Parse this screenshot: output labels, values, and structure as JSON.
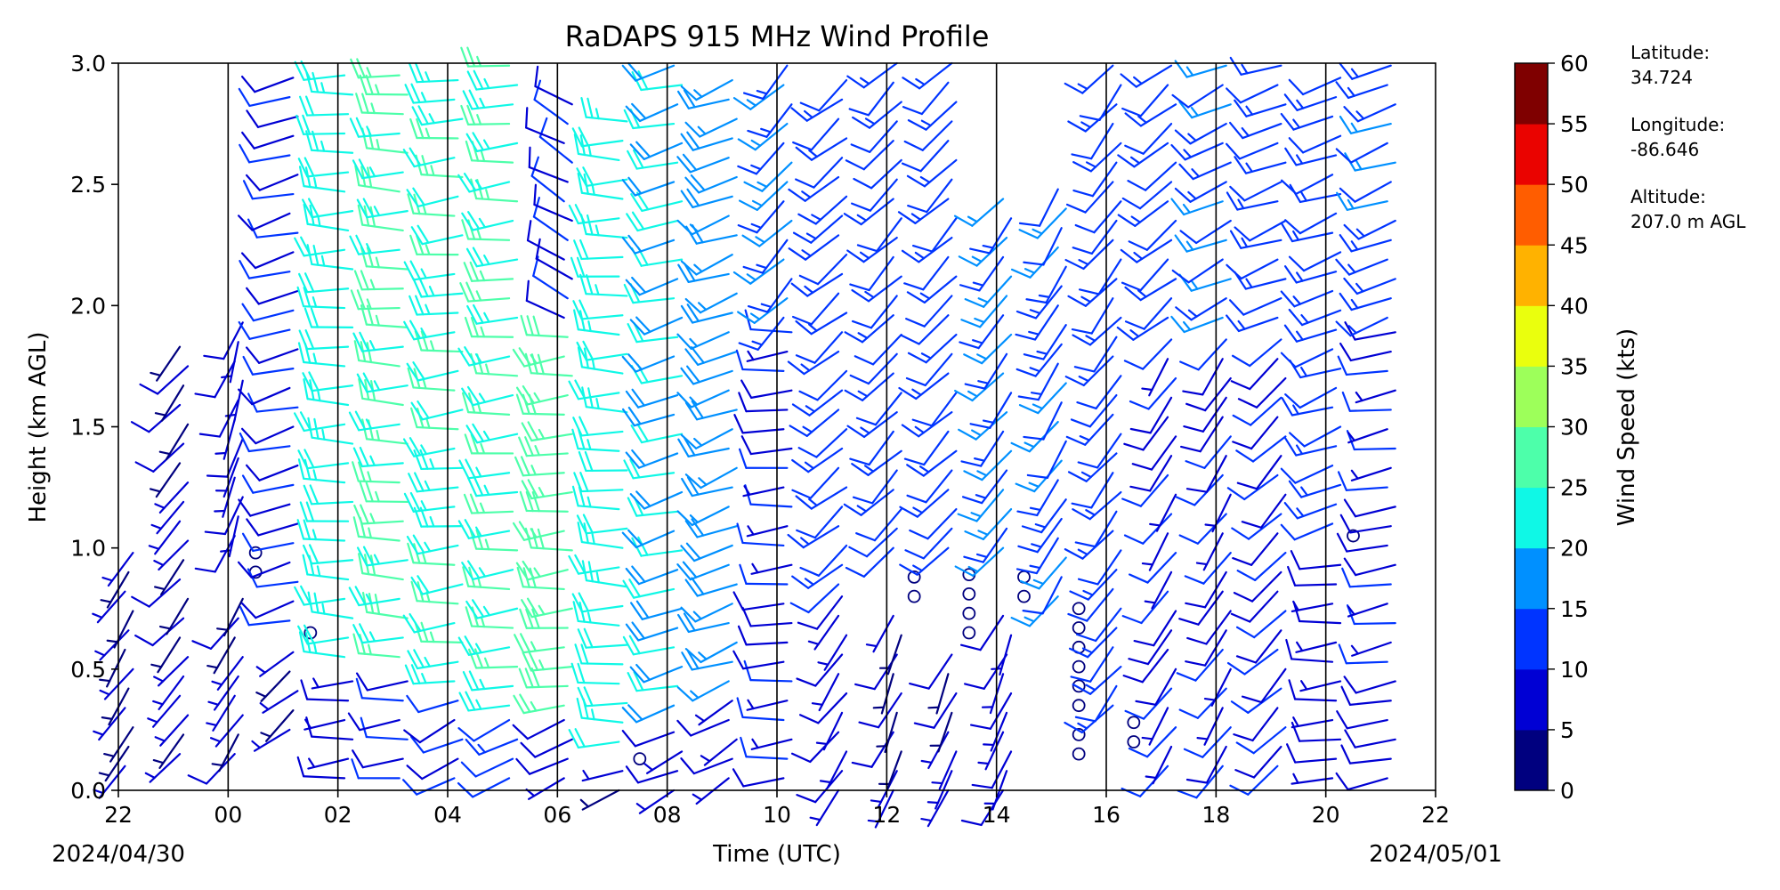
{
  "chart_data": {
    "type": "wind-barb",
    "title": "RaDAPS 915 MHz Wind Profile",
    "xlabel": "Time (UTC)",
    "ylabel": "Height (km AGL)",
    "x_ticks": [
      "22",
      "00",
      "02",
      "04",
      "06",
      "08",
      "10",
      "12",
      "14",
      "16",
      "18",
      "20",
      "22"
    ],
    "x_start_date": "2024/04/30",
    "x_end_date": "2024/05/01",
    "ylim": [
      0.0,
      3.0
    ],
    "y_ticks": [
      "0.0",
      "0.5",
      "1.0",
      "1.5",
      "2.0",
      "2.5",
      "3.0"
    ],
    "colorbar": {
      "label": "Wind Speed (kts)",
      "ticks": [
        "0",
        "5",
        "10",
        "15",
        "20",
        "25",
        "30",
        "35",
        "40",
        "45",
        "50",
        "55",
        "60"
      ],
      "colors": [
        "#00007f",
        "#0000d4",
        "#0034ff",
        "#0090ff",
        "#0ff8e6",
        "#4dffaa",
        "#9dff5a",
        "#eaff0d",
        "#ffb200",
        "#ff5d00",
        "#ea0300",
        "#7f0000"
      ]
    },
    "site": {
      "latitude_label": "Latitude:",
      "latitude": "34.724",
      "longitude_label": "Longitude:",
      "longitude": "-86.646",
      "altitude_label": "Altitude:",
      "altitude": "207.0 m AGL"
    },
    "profiles": [
      {
        "time": "22",
        "levels": [
          [
            0.1,
            1.0,
            5,
            215
          ]
        ]
      },
      {
        "time": "23",
        "levels": [
          [
            0.15,
            1.9,
            6,
            220
          ]
        ]
      },
      {
        "time": "00",
        "levels": [
          [
            0.15,
            0.85,
            6,
            215
          ],
          [
            0.9,
            1.0,
            0,
            0
          ],
          [
            1.05,
            2.0,
            7,
            200
          ]
        ]
      },
      {
        "time": "01",
        "levels": [
          [
            0.25,
            0.6,
            5,
            230
          ],
          [
            0.65,
            0.65,
            0,
            0
          ],
          [
            0.7,
            3.0,
            10,
            255
          ]
        ]
      },
      {
        "time": "02",
        "levels": [
          [
            0.05,
            0.5,
            8,
            265
          ],
          [
            0.55,
            3.0,
            22,
            270
          ]
        ]
      },
      {
        "time": "03",
        "levels": [
          [
            0.05,
            0.5,
            10,
            265
          ],
          [
            0.55,
            3.0,
            26,
            270
          ]
        ]
      },
      {
        "time": "04",
        "levels": [
          [
            0.05,
            0.4,
            10,
            245
          ],
          [
            0.45,
            3.0,
            24,
            265
          ]
        ]
      },
      {
        "time": "05",
        "levels": [
          [
            0.05,
            0.3,
            12,
            245
          ],
          [
            0.35,
            3.0,
            25,
            265
          ]
        ]
      },
      {
        "time": "06",
        "levels": [
          [
            0.05,
            0.3,
            8,
            245
          ],
          [
            0.35,
            1.9,
            27,
            265
          ],
          [
            1.95,
            2.9,
            10,
            300
          ]
        ]
      },
      {
        "time": "07",
        "levels": [
          [
            0.0,
            0.1,
            6,
            250
          ],
          [
            0.13,
            0.13,
            0,
            0
          ],
          [
            0.2,
            2.8,
            22,
            270
          ]
        ]
      },
      {
        "time": "08",
        "levels": [
          [
            0.0,
            0.3,
            8,
            245
          ],
          [
            0.35,
            3.0,
            20,
            255
          ]
        ]
      },
      {
        "time": "09",
        "levels": [
          [
            0.05,
            0.4,
            8,
            240
          ],
          [
            0.45,
            3.0,
            18,
            250
          ]
        ]
      },
      {
        "time": "10",
        "levels": [
          [
            0.05,
            1.9,
            9,
            265
          ],
          [
            1.95,
            3.0,
            15,
            225
          ]
        ]
      },
      {
        "time": "11",
        "levels": [
          [
            0.0,
            0.8,
            7,
            215
          ],
          [
            0.85,
            3.0,
            13,
            230
          ]
        ]
      },
      {
        "time": "12",
        "levels": [
          [
            0.0,
            0.75,
            6,
            205
          ],
          [
            0.8,
            0.95,
            0,
            0
          ],
          [
            1.0,
            3.0,
            12,
            225
          ]
        ]
      },
      {
        "time": "13",
        "levels": [
          [
            0.0,
            0.6,
            6,
            205
          ],
          [
            0.65,
            0.95,
            0,
            0
          ],
          [
            1.0,
            3.0,
            12,
            225
          ]
        ]
      },
      {
        "time": "14",
        "levels": [
          [
            0.0,
            0.75,
            7,
            205
          ],
          [
            0.8,
            0.95,
            0,
            0
          ],
          [
            1.0,
            2.5,
            15,
            220
          ]
        ]
      },
      {
        "time": "15",
        "levels": [
          [
            0.15,
            0.3,
            0,
            0
          ],
          [
            0.35,
            0.75,
            0,
            0
          ],
          [
            0.8,
            2.5,
            14,
            215
          ]
        ]
      },
      {
        "time": "16",
        "levels": [
          [
            0.2,
            0.3,
            0,
            0
          ],
          [
            0.35,
            3.0,
            12,
            220
          ]
        ]
      },
      {
        "time": "17",
        "levels": [
          [
            0.1,
            1.9,
            9,
            215
          ],
          [
            1.95,
            3.0,
            12,
            230
          ]
        ]
      },
      {
        "time": "18",
        "levels": [
          [
            0.1,
            1.9,
            9,
            215
          ],
          [
            1.95,
            3.0,
            14,
            245
          ]
        ]
      },
      {
        "time": "19",
        "levels": [
          [
            0.1,
            1.9,
            10,
            225
          ],
          [
            1.95,
            3.0,
            13,
            250
          ]
        ]
      },
      {
        "time": "20",
        "levels": [
          [
            0.05,
            1.0,
            8,
            265
          ],
          [
            1.05,
            1.05,
            0,
            0
          ],
          [
            1.1,
            3.0,
            13,
            250
          ]
        ]
      },
      {
        "time": "21",
        "levels": [
          [
            0.05,
            1.9,
            9,
            260
          ],
          [
            1.95,
            3.0,
            14,
            250
          ]
        ]
      }
    ]
  }
}
